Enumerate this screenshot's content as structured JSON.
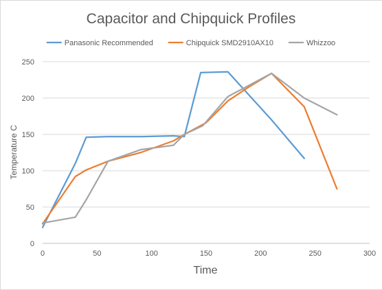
{
  "chart_data": {
    "type": "line",
    "title": "Capacitor and Chipquick Profiles",
    "xlabel": "Time",
    "ylabel": "Temperature  C",
    "xlim": [
      0,
      300
    ],
    "ylim": [
      0,
      250
    ],
    "xticks": [
      0,
      50,
      100,
      150,
      200,
      250,
      300
    ],
    "yticks": [
      0,
      50,
      100,
      150,
      200,
      250
    ],
    "grid": "horizontal",
    "legend_position": "top",
    "series": [
      {
        "name": "Panasonic Recommended",
        "color": "#5b9bd5",
        "x": [
          0,
          30,
          40,
          60,
          90,
          120,
          130,
          145,
          170,
          210,
          240
        ],
        "y": [
          22,
          110,
          146,
          147,
          147,
          148,
          147,
          235,
          236,
          170,
          117
        ]
      },
      {
        "name": "Chipquick SMD2910AX10",
        "color": "#ed7d31",
        "x": [
          0,
          30,
          40,
          60,
          90,
          120,
          130,
          150,
          170,
          190,
          210,
          240,
          270
        ],
        "y": [
          27,
          92,
          101,
          113,
          125,
          141,
          150,
          166,
          196,
          216,
          234,
          188,
          75
        ]
      },
      {
        "name": "Whizzoo",
        "color": "#a5a5a5",
        "x": [
          0,
          30,
          40,
          60,
          90,
          120,
          130,
          147,
          170,
          210,
          240,
          270
        ],
        "y": [
          28,
          36,
          60,
          113,
          129,
          135,
          150,
          162,
          202,
          234,
          200,
          177
        ]
      }
    ]
  }
}
